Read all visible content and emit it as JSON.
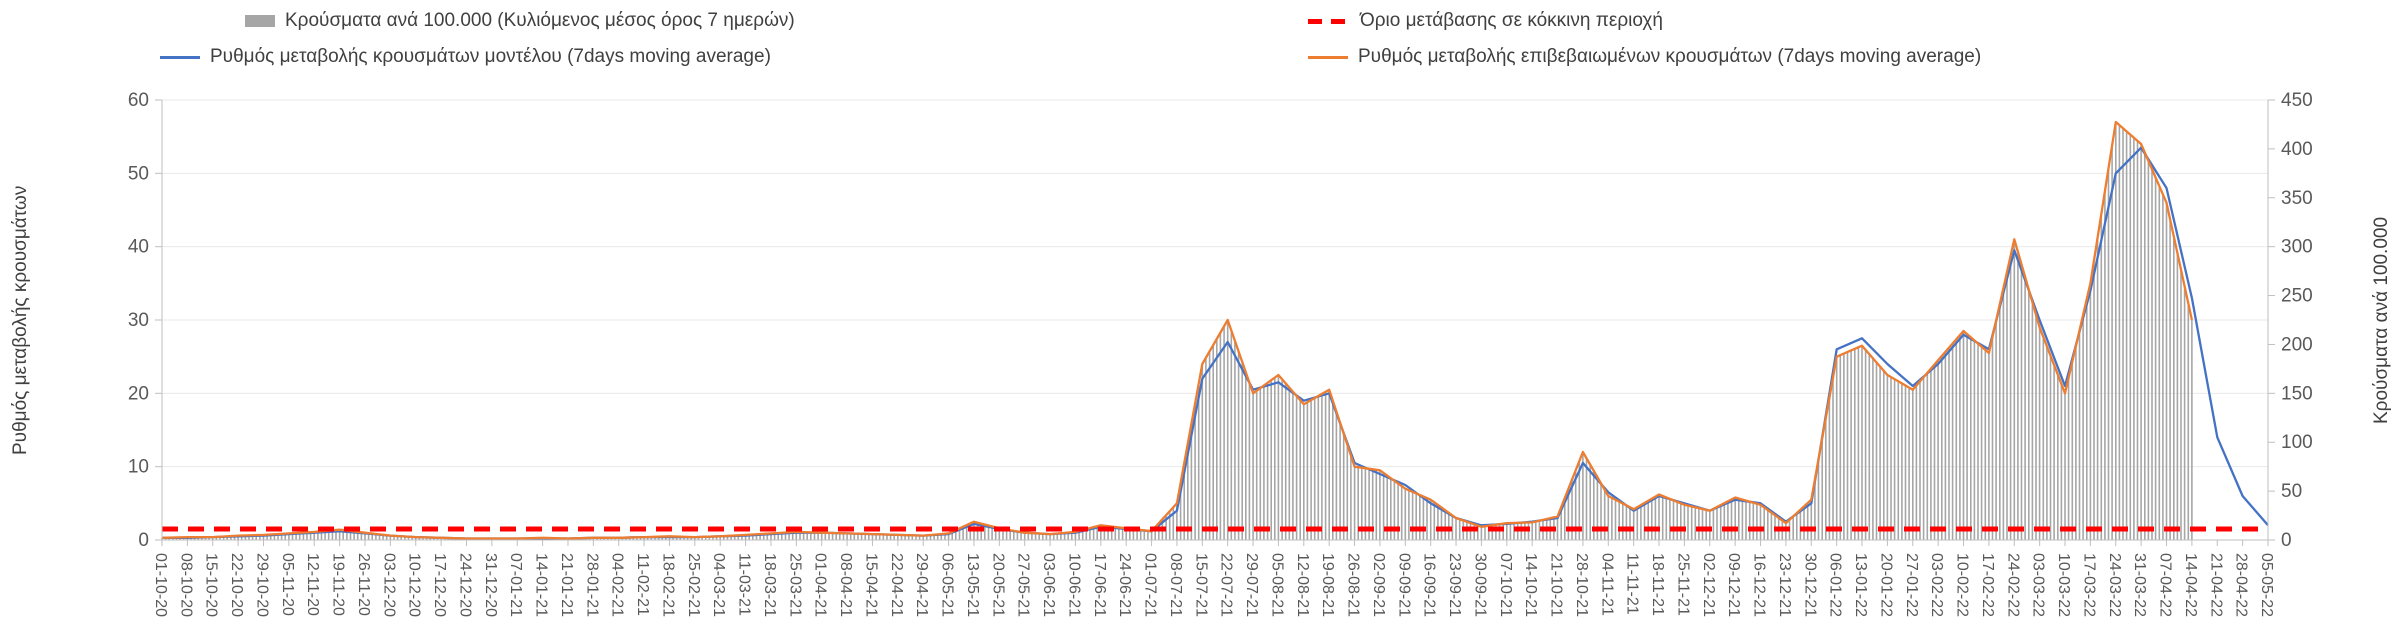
{
  "legend": {
    "bars": "Κρούσματα ανά 100.000 (Κυλιόμενος μέσος όρος 7 ημερών)",
    "threshold": "Όριο μετάβασης σε κόκκινη περιοχή",
    "model": "Ρυθμός μεταβολής κρουσμάτων μοντέλου (7days moving average)",
    "confirmed": "Ρυθμός μεταβολής επιβεβαιωμένων κρουσμάτων (7days moving average)"
  },
  "chart_data": {
    "type": "line",
    "title": "",
    "ylabel_left": "Ρυθμός μεταβολής κρουσμάτων",
    "ylabel_right": "Κρούσματα ανά 100.000",
    "ylim_left": [
      0,
      60
    ],
    "ylim_right": [
      0,
      450
    ],
    "yticks_left": [
      0,
      10,
      20,
      30,
      40,
      50,
      60
    ],
    "yticks_right": [
      0,
      50,
      100,
      150,
      200,
      250,
      300,
      350,
      400,
      450
    ],
    "grid": true,
    "legend_position": "top",
    "threshold_value": 1.5,
    "colors": {
      "bars": "#a6a6a6",
      "model": "#4472C4",
      "confirmed": "#ED7D31",
      "threshold": "#FF0000",
      "axis_text": "#595959"
    },
    "x": [
      "01-10-20",
      "08-10-20",
      "15-10-20",
      "22-10-20",
      "29-10-20",
      "05-11-20",
      "12-11-20",
      "19-11-20",
      "26-11-20",
      "03-12-20",
      "10-12-20",
      "17-12-20",
      "24-12-20",
      "31-12-20",
      "07-01-21",
      "14-01-21",
      "21-01-21",
      "28-01-21",
      "04-02-21",
      "11-02-21",
      "18-02-21",
      "25-02-21",
      "04-03-21",
      "11-03-21",
      "18-03-21",
      "25-03-21",
      "01-04-21",
      "08-04-21",
      "15-04-21",
      "22-04-21",
      "29-04-21",
      "06-05-21",
      "13-05-21",
      "20-05-21",
      "27-05-21",
      "03-06-21",
      "10-06-21",
      "17-06-21",
      "24-06-21",
      "01-07-21",
      "08-07-21",
      "15-07-21",
      "22-07-21",
      "29-07-21",
      "05-08-21",
      "12-08-21",
      "19-08-21",
      "26-08-21",
      "02-09-21",
      "09-09-21",
      "16-09-21",
      "23-09-21",
      "30-09-21",
      "07-10-21",
      "14-10-21",
      "21-10-21",
      "28-10-21",
      "04-11-21",
      "11-11-21",
      "18-11-21",
      "25-11-21",
      "02-12-21",
      "09-12-21",
      "16-12-21",
      "23-12-21",
      "30-12-21",
      "06-01-22",
      "13-01-22",
      "20-01-22",
      "27-01-22",
      "03-02-22",
      "10-02-22",
      "17-02-22",
      "24-02-22",
      "03-03-22",
      "10-03-22",
      "17-03-22",
      "24-03-22",
      "31-03-22",
      "07-04-22",
      "14-04-22",
      "21-04-22",
      "28-04-22",
      "05-05-22"
    ],
    "series": [
      {
        "id": "model",
        "name": "Ρυθμός μεταβολής κρουσμάτων μοντέλου (7days moving average)",
        "axis": "left",
        "color": "#4472C4",
        "values": [
          0.3,
          0.3,
          0.4,
          0.5,
          0.6,
          0.8,
          1.0,
          1.2,
          0.9,
          0.6,
          0.4,
          0.3,
          0.2,
          0.2,
          0.2,
          0.2,
          0.2,
          0.3,
          0.3,
          0.4,
          0.4,
          0.4,
          0.5,
          0.6,
          0.8,
          1.0,
          1.0,
          0.9,
          0.8,
          0.7,
          0.6,
          0.8,
          2.2,
          1.5,
          1.0,
          0.8,
          1.0,
          1.8,
          1.5,
          1.2,
          4.0,
          22.0,
          27.0,
          20.5,
          21.5,
          19.0,
          20.0,
          10.5,
          9.0,
          7.5,
          5.0,
          3.0,
          2.0,
          2.2,
          2.5,
          3.0,
          10.5,
          6.5,
          4.0,
          6.0,
          5.0,
          4.0,
          5.5,
          5.0,
          2.5,
          5.0,
          26.0,
          27.5,
          24.0,
          21.0,
          24.0,
          28.0,
          26.0,
          39.5,
          30.0,
          21.0,
          34.0,
          50.0,
          53.5,
          48.0,
          33.0,
          14.0,
          6.0,
          2.0
        ]
      },
      {
        "id": "confirmed",
        "name": "Ρυθμός μεταβολής επιβεβαιωμένων κρουσμάτων (7days moving average)",
        "axis": "left",
        "color": "#ED7D31",
        "values": [
          0.3,
          0.4,
          0.4,
          0.6,
          0.7,
          0.9,
          1.1,
          1.4,
          1.0,
          0.6,
          0.4,
          0.3,
          0.2,
          0.2,
          0.2,
          0.3,
          0.2,
          0.3,
          0.3,
          0.4,
          0.5,
          0.4,
          0.5,
          0.7,
          0.9,
          1.1,
          1.0,
          0.9,
          0.8,
          0.7,
          0.6,
          0.9,
          2.5,
          1.6,
          1.0,
          0.8,
          1.1,
          2.0,
          1.6,
          1.2,
          5.0,
          24.0,
          30.0,
          20.0,
          22.5,
          18.5,
          20.5,
          10.0,
          9.5,
          7.0,
          5.5,
          3.0,
          1.8,
          2.3,
          2.4,
          3.2,
          12.0,
          6.0,
          4.2,
          6.2,
          4.8,
          4.0,
          5.8,
          4.8,
          2.3,
          5.5,
          25.0,
          26.5,
          22.5,
          20.5,
          24.5,
          28.5,
          25.5,
          41.0,
          29.0,
          20.0,
          35.0,
          57.0,
          54.0,
          46.0,
          30.0,
          null,
          null,
          null
        ]
      },
      {
        "id": "cases-per-100k",
        "name": "Κρούσματα ανά 100.000 (Κυλιόμενος μέσος όρος 7 ημερών)",
        "type": "bar",
        "axis": "right",
        "color": "#a6a6a6",
        "values": [
          2,
          3,
          3,
          5,
          5,
          7,
          8,
          11,
          8,
          5,
          3,
          2,
          2,
          2,
          2,
          2,
          2,
          2,
          2,
          3,
          4,
          3,
          4,
          5,
          7,
          8,
          8,
          7,
          6,
          5,
          5,
          7,
          19,
          12,
          8,
          6,
          8,
          15,
          12,
          9,
          38,
          180,
          225,
          150,
          169,
          139,
          154,
          75,
          71,
          53,
          41,
          23,
          14,
          17,
          18,
          24,
          90,
          45,
          32,
          47,
          36,
          30,
          44,
          36,
          17,
          41,
          188,
          199,
          169,
          154,
          184,
          214,
          191,
          308,
          218,
          150,
          263,
          428,
          405,
          345,
          225,
          null,
          null,
          null
        ]
      }
    ]
  }
}
